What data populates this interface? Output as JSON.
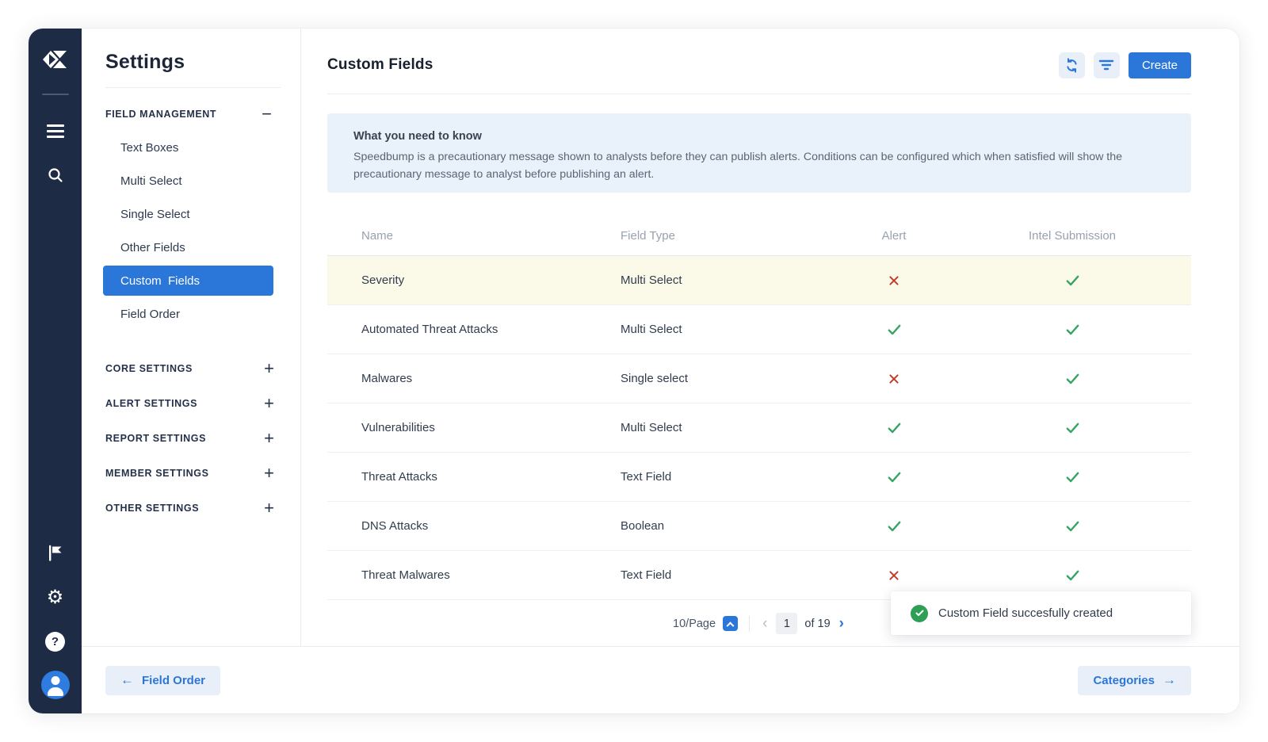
{
  "colors": {
    "rail_navy": "#1e2b45",
    "accent_blue": "#2b77d9",
    "chip_blue_bg": "#e8eff9",
    "banner_bg": "#e9f1fb",
    "highlight_row": "#fbf9e7",
    "check_green": "#37a464",
    "cross_red": "#c13a28",
    "toast_green": "#2f9e57"
  },
  "rail": {
    "icons": [
      "logo",
      "hamburger-menu",
      "search",
      "flag",
      "gear",
      "help",
      "avatar"
    ]
  },
  "nav": {
    "title": "Settings",
    "field_management": {
      "label": "FIELD MANAGEMENT",
      "collapse_glyph": "−",
      "items": [
        {
          "label": "Text Boxes",
          "selected": false
        },
        {
          "label": "Multi Select",
          "selected": false
        },
        {
          "label": "Single Select",
          "selected": false
        },
        {
          "label": "Other Fields",
          "selected": false
        },
        {
          "label": "Custom  Fields",
          "selected": true
        },
        {
          "label": "Field Order",
          "selected": false
        }
      ]
    },
    "sections": [
      {
        "label": "CORE SETTINGS",
        "expand_glyph": "+"
      },
      {
        "label": "ALERT SETTINGS",
        "expand_glyph": "+"
      },
      {
        "label": "REPORT SETTINGS",
        "expand_glyph": "+"
      },
      {
        "label": "MEMBER SETTINGS",
        "expand_glyph": "+"
      },
      {
        "label": "OTHER SETTINGS",
        "expand_glyph": "+"
      }
    ]
  },
  "header": {
    "title": "Custom Fields",
    "create_label": "Create",
    "action_icons": [
      "refresh-icon",
      "filter-icon"
    ]
  },
  "banner": {
    "title": "What you need to know",
    "body": "Speedbump is a precautionary message shown to analysts before they can publish alerts. Conditions can be configured which when satisfied will show the precautionary message to analyst before publishing an alert."
  },
  "table": {
    "columns": [
      "Name",
      "Field Type",
      "Alert",
      "Intel Submission"
    ],
    "rows": [
      {
        "name": "Severity",
        "field_type": "Multi Select",
        "alert": false,
        "intel_submission": true,
        "highlight": true
      },
      {
        "name": "Automated Threat Attacks",
        "field_type": "Multi Select",
        "alert": true,
        "intel_submission": true,
        "highlight": false
      },
      {
        "name": "Malwares",
        "field_type": "Single select",
        "alert": false,
        "intel_submission": true,
        "highlight": false
      },
      {
        "name": "Vulnerabilities",
        "field_type": "Multi Select",
        "alert": true,
        "intel_submission": true,
        "highlight": false
      },
      {
        "name": "Threat Attacks",
        "field_type": "Text Field",
        "alert": true,
        "intel_submission": true,
        "highlight": false
      },
      {
        "name": "DNS Attacks",
        "field_type": "Boolean",
        "alert": true,
        "intel_submission": true,
        "highlight": false
      },
      {
        "name": "Threat Malwares",
        "field_type": "Text Field",
        "alert": false,
        "intel_submission": true,
        "highlight": false
      }
    ]
  },
  "pagination": {
    "per_page": "10/Page",
    "prev_glyph": "‹",
    "current_page": "1",
    "of_label": "of 19",
    "next_glyph": "›"
  },
  "toast": {
    "message": "Custom Field succesfully created"
  },
  "footer": {
    "back_label": "Field Order",
    "back_arrow": "←",
    "next_label": "Categories",
    "next_arrow": "→"
  }
}
